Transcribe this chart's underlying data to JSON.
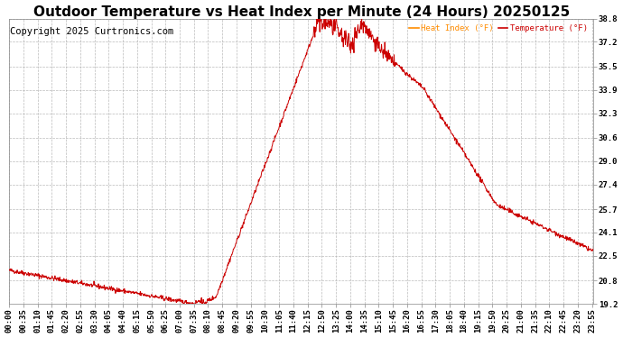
{
  "title": "Outdoor Temperature vs Heat Index per Minute (24 Hours) 20250125",
  "copyright": "Copyright 2025 Curtronics.com",
  "legend_heat": "Heat Index (°F)",
  "legend_temp": "Temperature (°F)",
  "legend_heat_color": "#ff8c00",
  "legend_temp_color": "#cc0000",
  "line_color": "#cc0000",
  "ylim": [
    19.2,
    38.8
  ],
  "yticks": [
    19.2,
    20.8,
    22.5,
    24.1,
    25.7,
    27.4,
    29.0,
    30.6,
    32.3,
    33.9,
    35.5,
    37.2,
    38.8
  ],
  "bg_color": "#ffffff",
  "plot_bg_color": "#ffffff",
  "grid_color": "#aaaaaa",
  "title_color": "#000000",
  "title_fontsize": 11,
  "copyright_fontsize": 7.5,
  "tick_fontsize": 6.5,
  "xlabel_rotation": 90,
  "xtick_step_minutes": 35
}
